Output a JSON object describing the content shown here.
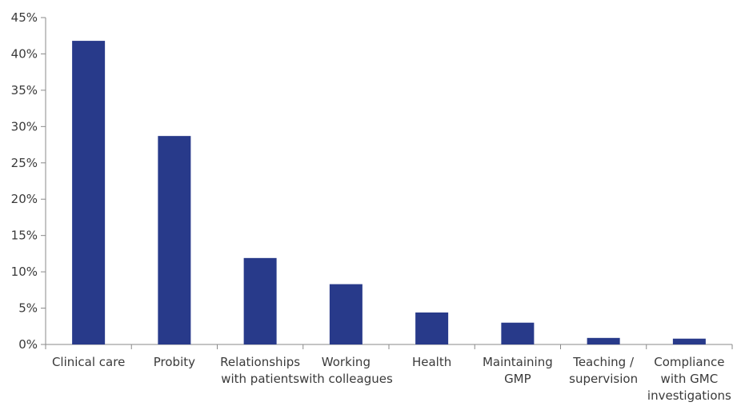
{
  "chart_data": {
    "type": "bar",
    "categories": [
      [
        "Clinical care"
      ],
      [
        "Probity"
      ],
      [
        "Relationships",
        "with patients"
      ],
      [
        "Working",
        "with colleagues"
      ],
      [
        "Health"
      ],
      [
        "Maintaining",
        "GMP"
      ],
      [
        "Teaching /",
        "supervision"
      ],
      [
        "Compliance",
        "with GMC",
        "investigations"
      ]
    ],
    "values": [
      41.8,
      28.7,
      11.9,
      8.3,
      4.4,
      3.0,
      0.9,
      0.8
    ],
    "yticks": [
      "0%",
      "5%",
      "10%",
      "15%",
      "20%",
      "25%",
      "30%",
      "35%",
      "40%",
      "45%"
    ],
    "ylim": [
      0,
      45
    ],
    "title": "",
    "xlabel": "",
    "ylabel": "",
    "grid": false,
    "colors": {
      "bar": "#283a8a",
      "axis": "#8a8a8a"
    }
  }
}
